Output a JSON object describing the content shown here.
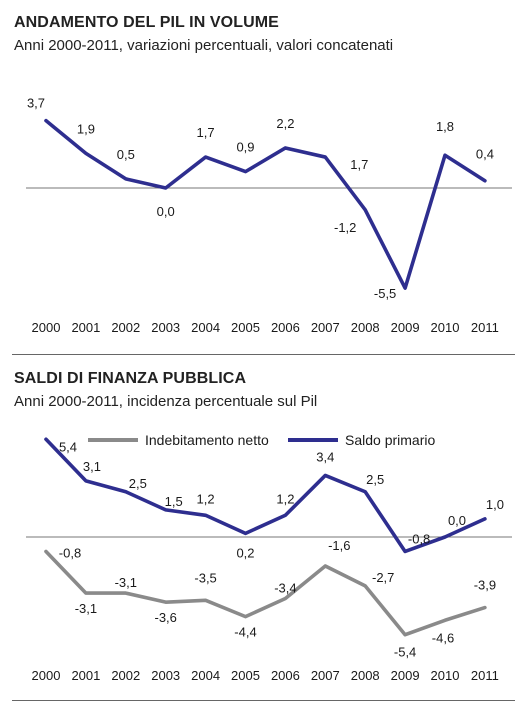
{
  "chart_data": [
    {
      "type": "line",
      "title": "ANDAMENTO DEL PIL IN VOLUME",
      "subtitle": "Anni 2000-2011, variazioni percentuali, valori concatenati",
      "x": [
        "2000",
        "2001",
        "2002",
        "2003",
        "2004",
        "2005",
        "2006",
        "2007",
        "2008",
        "2009",
        "2010",
        "2011"
      ],
      "series": [
        {
          "values": [
            3.7,
            1.9,
            0.5,
            0.0,
            1.7,
            0.9,
            2.2,
            1.7,
            -1.2,
            -5.5,
            1.8,
            0.4
          ],
          "labels": [
            "3,7",
            "1,9",
            "0,5",
            "0,0",
            "1,7",
            "0,9",
            "2,2",
            "1,7",
            "-1,2",
            "-5,5",
            "1,8",
            "0,4"
          ],
          "color": "#2e2e8f"
        }
      ],
      "ylim": [
        -6,
        4.2
      ],
      "grid": false,
      "zero_line": true
    },
    {
      "type": "line",
      "title": "SALDI DI FINANZA PUBBLICA",
      "subtitle": "Anni 2000-2011, incidenza percentuale sul Pil",
      "x": [
        "2000",
        "2001",
        "2002",
        "2003",
        "2004",
        "2005",
        "2006",
        "2007",
        "2008",
        "2009",
        "2010",
        "2011"
      ],
      "series": [
        {
          "name": "Indebitamento netto",
          "values": [
            -0.8,
            -3.1,
            -3.1,
            -3.6,
            -3.5,
            -4.4,
            -3.4,
            -1.6,
            -2.7,
            -5.4,
            -4.6,
            -3.9
          ],
          "labels": [
            "-0,8",
            "-3,1",
            "-3,1",
            "-3,6",
            "-3,5",
            "-4,4",
            "-3,4",
            "-1,6",
            "-2,7",
            "-5,4",
            "-4,6",
            "-3,9"
          ],
          "color": "#8a8a8a"
        },
        {
          "name": "Saldo primario",
          "values": [
            5.4,
            3.1,
            2.5,
            1.5,
            1.2,
            0.2,
            1.2,
            3.4,
            2.5,
            -0.8,
            0.0,
            1.0
          ],
          "labels": [
            "5,4",
            "3,1",
            "2,5",
            "1,5",
            "1,2",
            "0,2",
            "1,2",
            "3,4",
            "2,5",
            "-0,8",
            "0,0",
            "1,0"
          ],
          "color": "#2e2e8f"
        }
      ],
      "ylim": [
        -6.4,
        5.6
      ],
      "grid": false,
      "legend": "top",
      "zero_line": true
    }
  ]
}
